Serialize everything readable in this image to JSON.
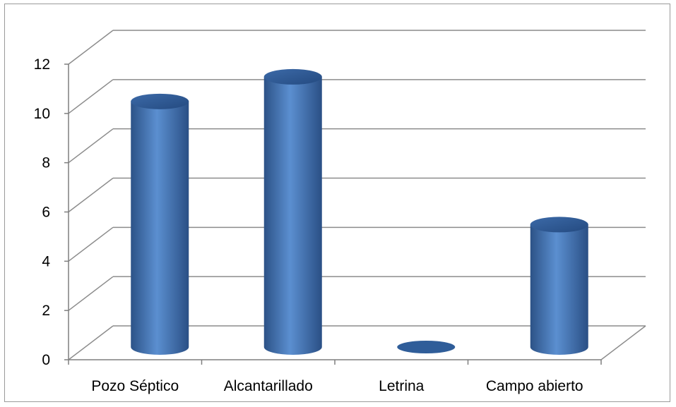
{
  "chart_data": {
    "type": "bar",
    "style": "3d-cylinder",
    "categories": [
      "Pozo Séptico",
      "Alcantarillado",
      "Letrina",
      "Campo abierto"
    ],
    "values": [
      10,
      11,
      0,
      5
    ],
    "y_ticks": [
      "0",
      "2",
      "4",
      "6",
      "8",
      "10",
      "12"
    ],
    "ylim": [
      0,
      12
    ],
    "grid": true,
    "legend": "none",
    "bar_color": "#4a7ebb",
    "title": "",
    "xlabel": "",
    "ylabel": ""
  }
}
